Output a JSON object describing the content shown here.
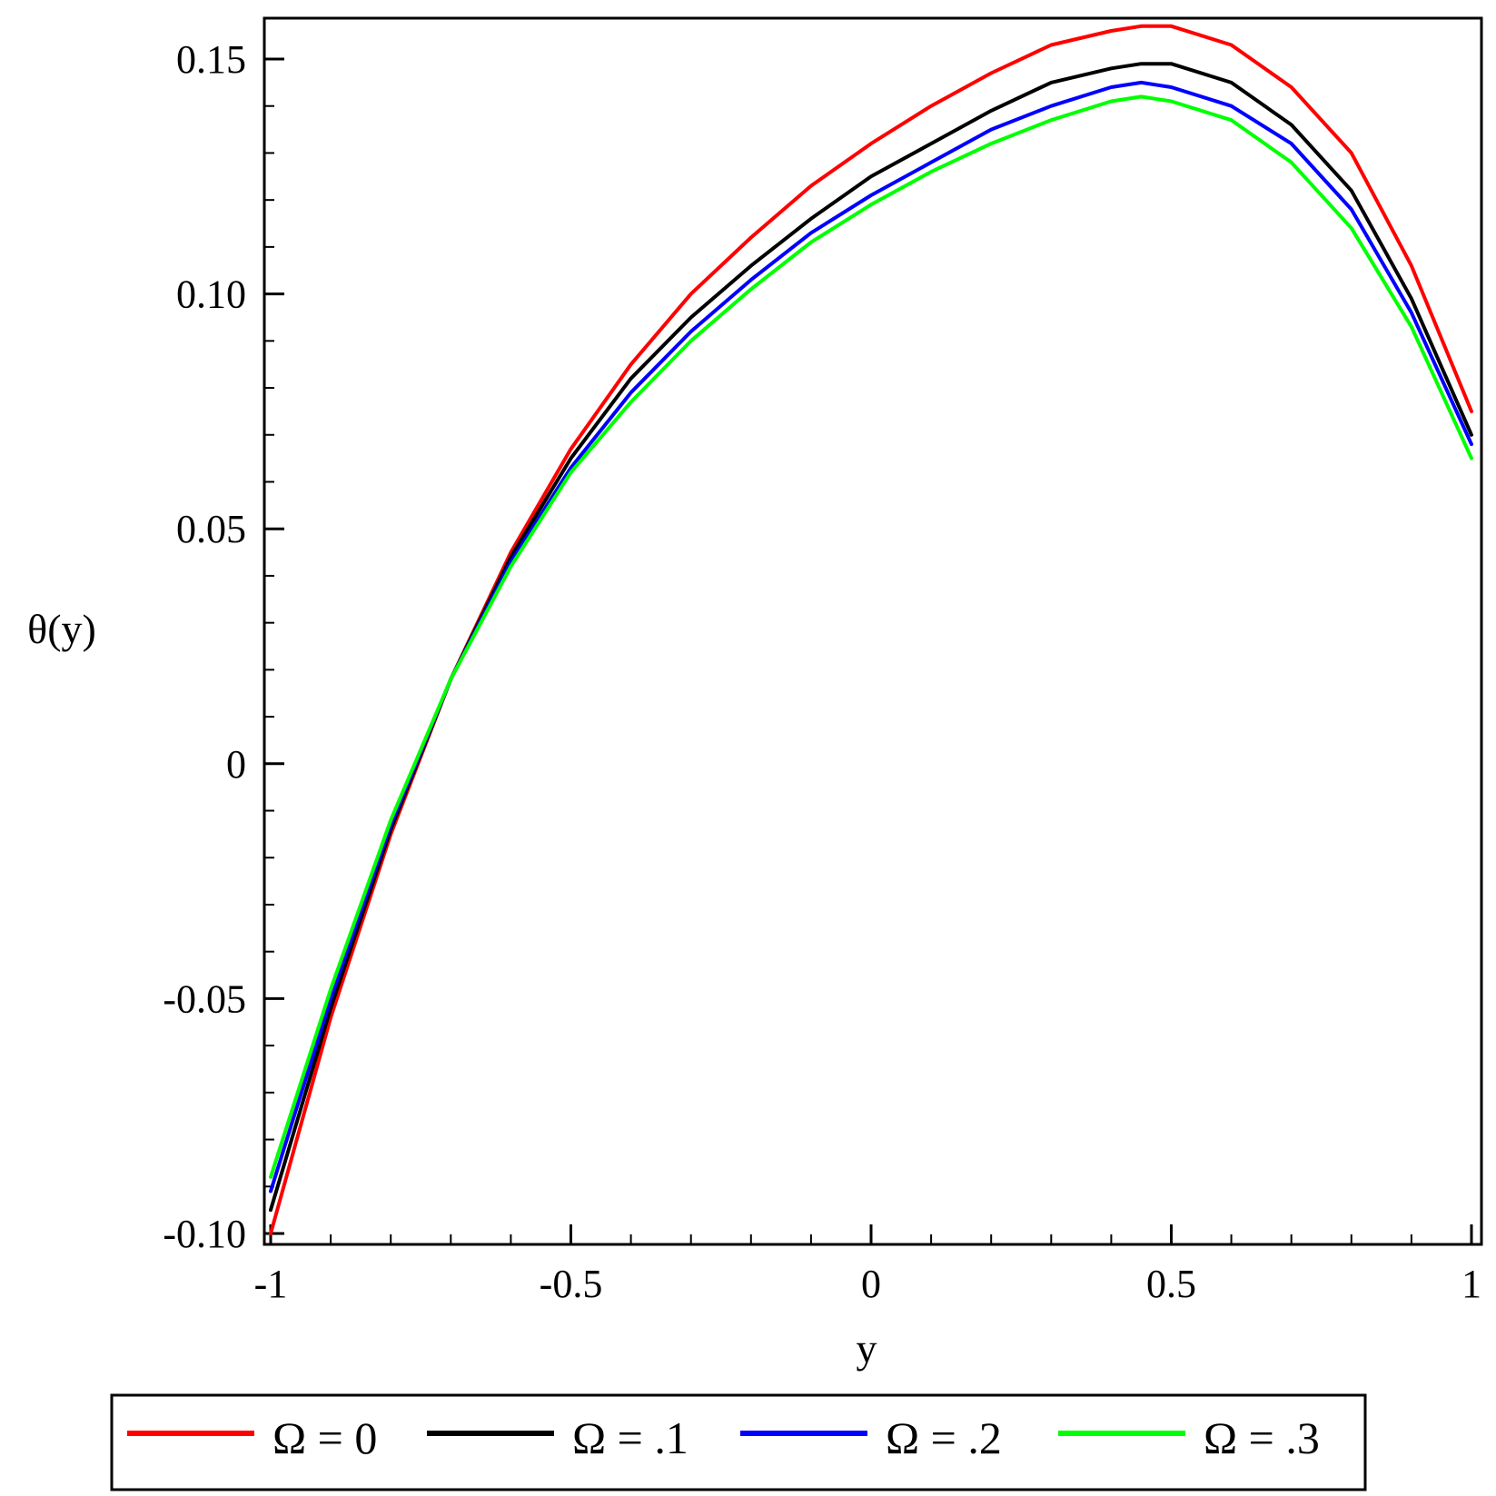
{
  "chart_data": {
    "type": "line",
    "title": "",
    "xlabel": "y",
    "ylabel": "θ(y)",
    "xlim": [
      -1,
      1
    ],
    "ylim": [
      -0.1,
      0.158
    ],
    "xticks": [
      -1,
      -0.5,
      0,
      0.5,
      1
    ],
    "xtick_labels": [
      "-1",
      "-0.5",
      "0",
      "0.5",
      "1"
    ],
    "yticks": [
      -0.1,
      -0.05,
      0,
      0.05,
      0.1,
      0.15
    ],
    "ytick_labels": [
      "-0.10",
      "-0.05",
      "0",
      "0.05",
      "0.10",
      "0.15"
    ],
    "grid": false,
    "legend_position": "bottom",
    "x": [
      -1,
      -0.9,
      -0.8,
      -0.7,
      -0.6,
      -0.5,
      -0.4,
      -0.3,
      -0.2,
      -0.1,
      0,
      0.1,
      0.2,
      0.3,
      0.4,
      0.45,
      0.5,
      0.6,
      0.7,
      0.8,
      0.9,
      1
    ],
    "series": [
      {
        "name": "Ω = 0",
        "color": "#ff0000",
        "values": [
          -0.1,
          -0.054,
          -0.015,
          0.018,
          0.045,
          0.067,
          0.085,
          0.1,
          0.112,
          0.123,
          0.132,
          0.14,
          0.147,
          0.153,
          0.156,
          0.157,
          0.157,
          0.153,
          0.144,
          0.13,
          0.106,
          0.075
        ]
      },
      {
        "name": "Ω = .1",
        "color": "#000000",
        "values": [
          -0.095,
          -0.052,
          -0.014,
          0.018,
          0.044,
          0.065,
          0.082,
          0.095,
          0.106,
          0.116,
          0.125,
          0.132,
          0.139,
          0.145,
          0.148,
          0.149,
          0.149,
          0.145,
          0.136,
          0.122,
          0.099,
          0.07
        ]
      },
      {
        "name": "Ω = .2",
        "color": "#0000ff",
        "values": [
          -0.091,
          -0.05,
          -0.013,
          0.018,
          0.043,
          0.063,
          0.079,
          0.092,
          0.103,
          0.113,
          0.121,
          0.128,
          0.135,
          0.14,
          0.144,
          0.145,
          0.144,
          0.14,
          0.132,
          0.118,
          0.096,
          0.068
        ]
      },
      {
        "name": "Ω = .3",
        "color": "#00ff00",
        "values": [
          -0.088,
          -0.048,
          -0.012,
          0.018,
          0.042,
          0.062,
          0.077,
          0.09,
          0.101,
          0.111,
          0.119,
          0.126,
          0.132,
          0.137,
          0.141,
          0.142,
          0.141,
          0.137,
          0.128,
          0.114,
          0.093,
          0.065
        ]
      }
    ]
  }
}
